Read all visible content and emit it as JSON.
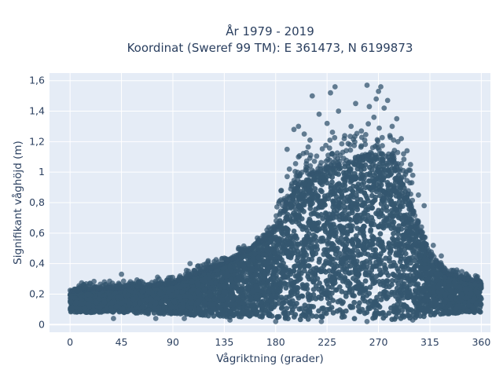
{
  "chart_data": {
    "type": "scatter",
    "title_line1": "År 1979 - 2019",
    "title_line2": "Koordinat (Sweref 99 TM): E 361473, N 6199873",
    "xlabel": "Vågriktning (grader)",
    "ylabel": "Signifikant våghöjd (m)",
    "xlim": [
      -18,
      368
    ],
    "ylim": [
      -0.05,
      1.65
    ],
    "x_ticks": [
      0,
      45,
      90,
      135,
      180,
      225,
      270,
      315,
      360
    ],
    "x_tick_labels": [
      "0",
      "45",
      "90",
      "135",
      "180",
      "225",
      "270",
      "315",
      "360"
    ],
    "y_ticks": [
      0,
      0.2,
      0.4,
      0.6,
      0.8,
      1.0,
      1.2,
      1.4,
      1.6
    ],
    "y_tick_labels": [
      "0",
      "0,2",
      "0,4",
      "0,6",
      "0,8",
      "1",
      "1,2",
      "1,4",
      "1,6"
    ],
    "grid": true,
    "marker_color": "#34566f",
    "plot_bg": "#e5ecf6",
    "envelope": {
      "x": [
        0,
        20,
        45,
        70,
        90,
        110,
        135,
        160,
        180,
        195,
        210,
        225,
        240,
        255,
        270,
        285,
        300,
        315,
        330,
        345,
        360
      ],
      "upper": [
        0.22,
        0.23,
        0.24,
        0.25,
        0.27,
        0.33,
        0.4,
        0.5,
        0.62,
        0.88,
        0.98,
        1.02,
        1.05,
        1.08,
        1.12,
        1.05,
        0.75,
        0.45,
        0.33,
        0.3,
        0.28
      ],
      "lower": [
        0.08,
        0.08,
        0.08,
        0.07,
        0.07,
        0.06,
        0.05,
        0.05,
        0.04,
        0.03,
        0.03,
        0.03,
        0.03,
        0.03,
        0.03,
        0.03,
        0.04,
        0.06,
        0.07,
        0.08,
        0.08
      ]
    },
    "outliers": [
      [
        30,
        0.28
      ],
      [
        45,
        0.33
      ],
      [
        60,
        0.28
      ],
      [
        85,
        0.29
      ],
      [
        105,
        0.4
      ],
      [
        130,
        0.41
      ],
      [
        150,
        0.48
      ],
      [
        170,
        0.55
      ],
      [
        185,
        0.88
      ],
      [
        192,
        1.02
      ],
      [
        196,
        1.28
      ],
      [
        200,
        1.3
      ],
      [
        205,
        1.25
      ],
      [
        210,
        1.21
      ],
      [
        212,
        1.5
      ],
      [
        218,
        1.38
      ],
      [
        225,
        1.32
      ],
      [
        228,
        1.52
      ],
      [
        232,
        1.56
      ],
      [
        240,
        1.22
      ],
      [
        246,
        1.3
      ],
      [
        250,
        1.45
      ],
      [
        255,
        1.27
      ],
      [
        260,
        1.57
      ],
      [
        262,
        1.43
      ],
      [
        266,
        1.36
      ],
      [
        270,
        1.53
      ],
      [
        272,
        1.56
      ],
      [
        275,
        1.42
      ],
      [
        278,
        1.47
      ],
      [
        282,
        1.3
      ],
      [
        286,
        1.35
      ],
      [
        290,
        1.22
      ],
      [
        295,
        1.14
      ],
      [
        300,
        0.98
      ],
      [
        305,
        0.85
      ],
      [
        310,
        0.78
      ],
      [
        318,
        0.52
      ],
      [
        325,
        0.45
      ],
      [
        335,
        0.35
      ],
      [
        345,
        0.3
      ],
      [
        355,
        0.32
      ],
      [
        75,
        0.04
      ],
      [
        100,
        0.04
      ],
      [
        140,
        0.03
      ],
      [
        180,
        0.02
      ],
      [
        220,
        0.02
      ],
      [
        260,
        0.02
      ],
      [
        300,
        0.03
      ],
      [
        38,
        0.04
      ],
      [
        190,
        1.15
      ],
      [
        200,
        1.1
      ],
      [
        235,
        1.4
      ],
      [
        245,
        1.18
      ],
      [
        255,
        1.1
      ],
      [
        268,
        1.48
      ],
      [
        280,
        1.24
      ],
      [
        287,
        1.2
      ],
      [
        292,
        1.12
      ],
      [
        298,
        1.05
      ]
    ]
  }
}
